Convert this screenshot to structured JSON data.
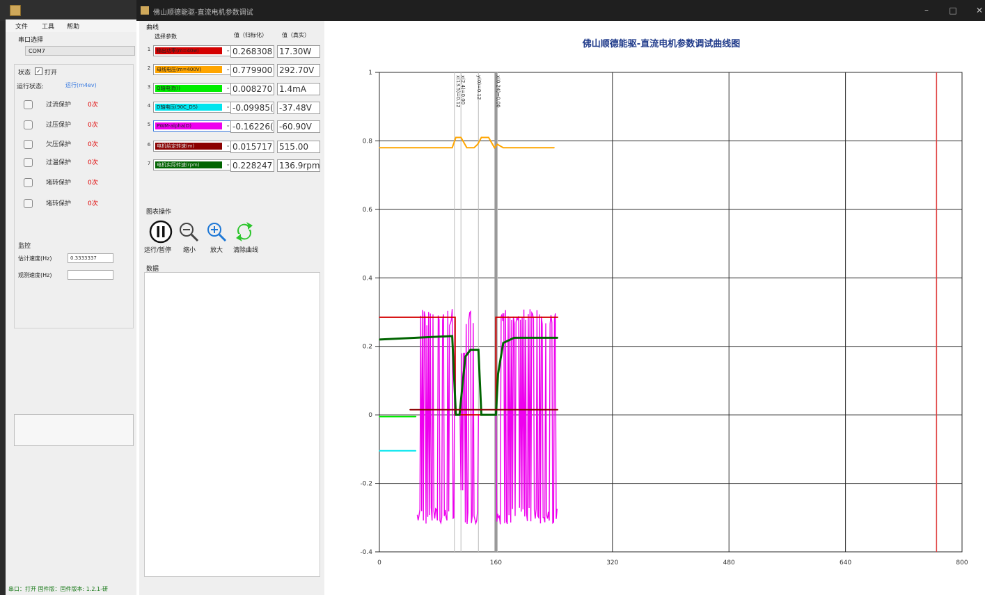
{
  "back_window": {
    "menu": [
      "文件",
      "工具",
      "帮助"
    ],
    "port_label": "串口选择",
    "port_value": "COM7",
    "status_label": "状态",
    "status_checkbox_label": "打开",
    "run_state_label": "运行状态:",
    "run_state_value": "运行(m4ev)",
    "protections": [
      {
        "label": "过流保护",
        "status": "0次"
      },
      {
        "label": "过压保护",
        "status": "0次"
      },
      {
        "label": "欠压保护",
        "status": "0次"
      },
      {
        "label": "过温保护",
        "status": "0次"
      },
      {
        "label": "堵转保护",
        "status": "0次"
      },
      {
        "label": "堵转保护",
        "status": "0次"
      }
    ],
    "monitor_label": "监控",
    "estimate_speed_label": "估计速度(Hz)",
    "estimate_speed_value": "0.3333337",
    "observer_speed_label": "观测速度(Hz)",
    "observer_speed_value": "",
    "status_bar": "串口：打开 固件版：固件版本: 1.2.1-研"
  },
  "main_window": {
    "title": "佛山顺德能驱-直流电机参数调试",
    "curve_group_label": "曲线",
    "col_select": "选择参数",
    "col_norm": "值（归标化）",
    "col_real": "值（真实）",
    "curves": [
      {
        "index": "1",
        "name": "输出功率(m=40w)",
        "color": "#d40000",
        "norm": "0.268308",
        "real": "17.30W"
      },
      {
        "index": "2",
        "name": "母线电压(m=400V)",
        "color": "#ffa500",
        "norm": "0.779900",
        "real": "292.70V"
      },
      {
        "index": "3",
        "name": "Q轴电流(I)",
        "color": "#00ee00",
        "norm": "0.008270",
        "real": "1.4mA"
      },
      {
        "index": "4",
        "name": "D轴电压(90C_DS)",
        "color": "#00e5ee",
        "norm": "-0.09985(",
        "real": "-37.48V"
      },
      {
        "index": "5",
        "name": "PWM-alpha(D)",
        "color": "#ee00ee",
        "norm": "-0.16226(",
        "real": "-60.90V"
      },
      {
        "index": "6",
        "name": "电机给定转速(m)",
        "color": "#8b0000",
        "norm": "0.015717",
        "real": "515.00"
      },
      {
        "index": "7",
        "name": "电机实际转速(rpm)",
        "color": "#006400",
        "norm": "0.228247",
        "real": "136.9rpm"
      }
    ],
    "chart_ops_label": "图表操作",
    "ops": {
      "run_pause": "运行/暂停",
      "zoom_out": "缩小",
      "zoom_in": "放大",
      "clear": "清除曲线"
    },
    "data_label": "数据",
    "chart_title": "佛山顺德能驱-直流电机参数调试曲线图",
    "annotations": [
      "x(13.5)=0.12",
      "x(2.4)=0.00",
      "y(0)=0.12",
      "x(0.24)=0.00"
    ]
  },
  "chart_data": {
    "type": "line",
    "title": "佛山顺德能驱-直流电机参数调试曲线图",
    "xlim": [
      0,
      800
    ],
    "ylim": [
      -0.4,
      1
    ],
    "x_ticks": [
      "0",
      "160",
      "320",
      "480",
      "640",
      "800"
    ],
    "y_ticks": [
      "-0.4",
      "-0.2",
      "0",
      "0.2",
      "0.4",
      "0.6",
      "0.8",
      "1"
    ],
    "grid": true,
    "marker_x": 765,
    "cursor_lines_x": [
      103,
      112,
      136,
      160,
      162
    ],
    "series": [
      {
        "color": "#ffa500",
        "x": [
          0,
          100,
          105,
          112,
          120,
          130,
          135,
          140,
          150,
          158,
          162,
          170,
          240
        ],
        "values": [
          0.78,
          0.78,
          0.81,
          0.81,
          0.78,
          0.78,
          0.79,
          0.81,
          0.81,
          0.78,
          0.79,
          0.78,
          0.78
        ]
      },
      {
        "color": "#d40000",
        "x": [
          0,
          104,
          104,
          160,
          160,
          245
        ],
        "values": [
          0.285,
          0.285,
          0.0,
          0.0,
          0.285,
          0.285
        ]
      },
      {
        "color": "#006400",
        "x": [
          0,
          50,
          100,
          105,
          110,
          118,
          125,
          136,
          140,
          155,
          160,
          163,
          170,
          185,
          245
        ],
        "values": [
          0.22,
          0.225,
          0.23,
          0.0,
          0.0,
          0.17,
          0.19,
          0.19,
          0.0,
          0.0,
          0.0,
          0.12,
          0.21,
          0.225,
          0.225
        ]
      },
      {
        "color": "#8b0000",
        "x": [
          42,
          245
        ],
        "values": [
          0.015,
          0.015
        ]
      },
      {
        "color": "#00ee00",
        "x": [
          0,
          50
        ],
        "values": [
          -0.005,
          -0.005
        ]
      },
      {
        "color": "#00e5ee",
        "x": [
          0,
          50
        ],
        "values": [
          -0.105,
          -0.105
        ]
      }
    ],
    "pwm_band": {
      "color": "#ee00ee",
      "x_range": [
        52,
        245
      ],
      "gaps": [
        [
          104,
          118
        ],
        [
          136,
          160
        ]
      ],
      "ymin": -0.32,
      "ymax": 0.31
    }
  }
}
